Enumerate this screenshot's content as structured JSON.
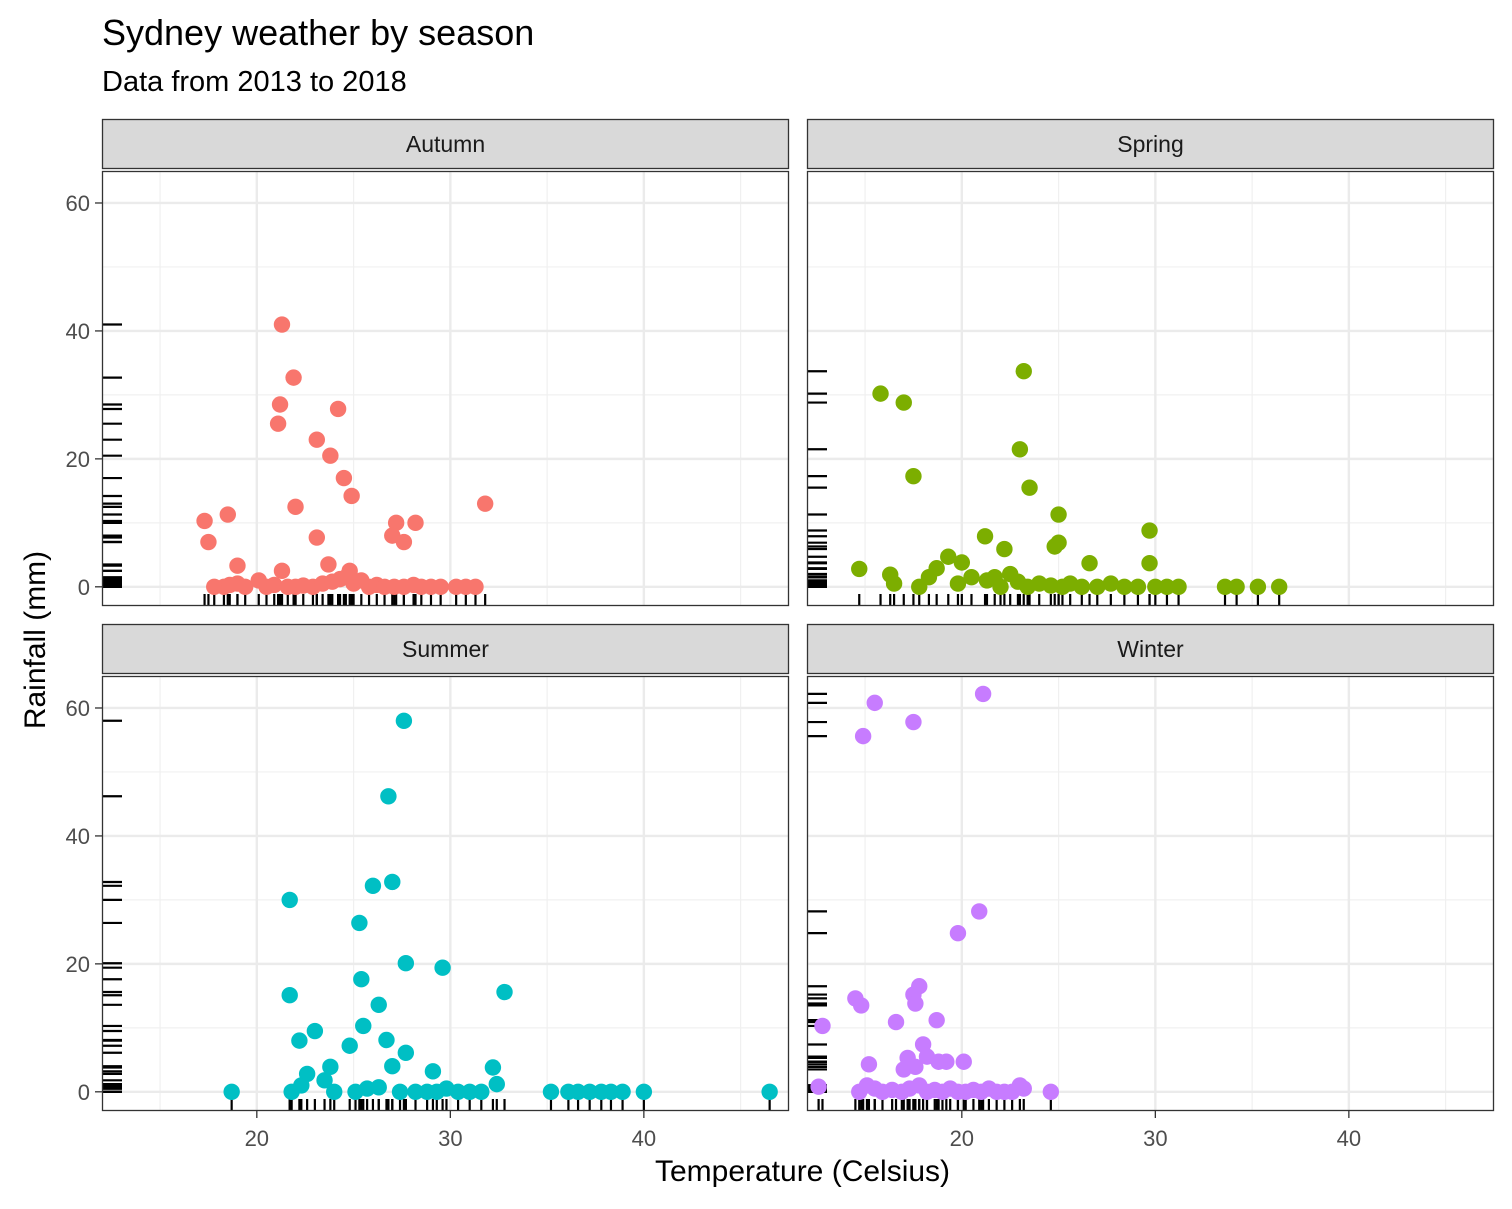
{
  "chart_data": {
    "type": "scatter",
    "title": "Sydney weather by season",
    "subtitle": "Data from 2013 to 2018",
    "xlabel": "Temperature (Celsius)",
    "ylabel": "Rainfall (mm)",
    "xlim": [
      12,
      47.5
    ],
    "ylim": [
      -3,
      65
    ],
    "x_ticks": [
      20,
      30,
      40
    ],
    "y_ticks": [
      0,
      20,
      40,
      60
    ],
    "grid": true,
    "rug": true,
    "facets": [
      {
        "name": "Autumn",
        "color": "#F8766D",
        "points": [
          [
            17.3,
            10.3
          ],
          [
            17.5,
            7.0
          ],
          [
            18.5,
            11.3
          ],
          [
            19.0,
            3.3
          ],
          [
            21.3,
            41.0
          ],
          [
            21.2,
            28.5
          ],
          [
            21.1,
            25.5
          ],
          [
            21.9,
            32.7
          ],
          [
            22.0,
            12.5
          ],
          [
            21.3,
            2.5
          ],
          [
            23.1,
            23.0
          ],
          [
            23.1,
            7.7
          ],
          [
            24.2,
            27.8
          ],
          [
            23.8,
            20.5
          ],
          [
            23.7,
            3.5
          ],
          [
            24.5,
            17.0
          ],
          [
            24.9,
            14.2
          ],
          [
            24.8,
            2.5
          ],
          [
            27.2,
            10.0
          ],
          [
            28.2,
            10.0
          ],
          [
            27.0,
            8.0
          ],
          [
            27.6,
            7.0
          ],
          [
            31.8,
            13.0
          ],
          [
            17.8,
            0
          ],
          [
            18.3,
            0
          ],
          [
            18.6,
            0.3
          ],
          [
            19.0,
            0.5
          ],
          [
            19.4,
            0
          ],
          [
            20.1,
            1.0
          ],
          [
            20.5,
            0
          ],
          [
            20.9,
            0.3
          ],
          [
            21.6,
            0
          ],
          [
            22.0,
            0
          ],
          [
            22.4,
            0.2
          ],
          [
            22.9,
            0
          ],
          [
            23.4,
            0.5
          ],
          [
            23.9,
            0.8
          ],
          [
            24.3,
            1.2
          ],
          [
            24.6,
            1.5
          ],
          [
            25.0,
            0.5
          ],
          [
            25.4,
            1.0
          ],
          [
            25.8,
            0
          ],
          [
            26.2,
            0.3
          ],
          [
            26.6,
            0
          ],
          [
            27.1,
            0
          ],
          [
            27.6,
            0
          ],
          [
            28.1,
            0.3
          ],
          [
            28.5,
            0
          ],
          [
            29.0,
            0
          ],
          [
            29.5,
            0
          ],
          [
            30.3,
            0
          ],
          [
            30.8,
            0
          ],
          [
            31.3,
            0
          ]
        ]
      },
      {
        "name": "Spring",
        "color": "#7CAE00",
        "points": [
          [
            15.8,
            30.2
          ],
          [
            17.0,
            28.8
          ],
          [
            17.5,
            17.3
          ],
          [
            23.2,
            33.7
          ],
          [
            23.0,
            21.5
          ],
          [
            23.5,
            15.5
          ],
          [
            25.0,
            11.3
          ],
          [
            29.7,
            8.8
          ],
          [
            29.7,
            3.7
          ],
          [
            21.2,
            7.9
          ],
          [
            22.2,
            5.9
          ],
          [
            24.8,
            6.3
          ],
          [
            25.0,
            6.9
          ],
          [
            26.6,
            3.7
          ],
          [
            14.7,
            2.8
          ],
          [
            16.3,
            1.9
          ],
          [
            18.7,
            2.9
          ],
          [
            19.3,
            4.7
          ],
          [
            20.0,
            3.8
          ],
          [
            16.5,
            0.5
          ],
          [
            17.8,
            0
          ],
          [
            18.3,
            1.5
          ],
          [
            19.8,
            0.5
          ],
          [
            20.5,
            1.5
          ],
          [
            21.3,
            1.0
          ],
          [
            21.7,
            1.5
          ],
          [
            22.0,
            0
          ],
          [
            22.5,
            2.0
          ],
          [
            22.9,
            0.8
          ],
          [
            23.4,
            0
          ],
          [
            24.0,
            0.5
          ],
          [
            24.6,
            0.2
          ],
          [
            25.2,
            0
          ],
          [
            25.6,
            0.5
          ],
          [
            26.2,
            0
          ],
          [
            27.0,
            0
          ],
          [
            27.7,
            0.5
          ],
          [
            28.4,
            0
          ],
          [
            29.1,
            0
          ],
          [
            30.0,
            0
          ],
          [
            30.6,
            0
          ],
          [
            31.2,
            0
          ],
          [
            33.6,
            0
          ],
          [
            34.2,
            0
          ],
          [
            35.3,
            0
          ],
          [
            36.4,
            0
          ]
        ]
      },
      {
        "name": "Summer",
        "color": "#00BFC4",
        "points": [
          [
            27.6,
            58.0
          ],
          [
            26.8,
            46.2
          ],
          [
            27.0,
            32.8
          ],
          [
            26.0,
            32.2
          ],
          [
            21.7,
            30.0
          ],
          [
            25.3,
            26.4
          ],
          [
            27.7,
            20.1
          ],
          [
            29.6,
            19.4
          ],
          [
            25.4,
            17.6
          ],
          [
            21.7,
            15.1
          ],
          [
            32.8,
            15.6
          ],
          [
            26.3,
            13.6
          ],
          [
            25.5,
            10.3
          ],
          [
            23.0,
            9.5
          ],
          [
            22.2,
            8.0
          ],
          [
            26.7,
            8.1
          ],
          [
            24.8,
            7.2
          ],
          [
            27.7,
            6.1
          ],
          [
            23.8,
            3.9
          ],
          [
            22.6,
            2.8
          ],
          [
            29.1,
            3.2
          ],
          [
            32.2,
            3.8
          ],
          [
            18.7,
            0
          ],
          [
            21.8,
            0
          ],
          [
            22.3,
            1.0
          ],
          [
            23.5,
            1.8
          ],
          [
            24.0,
            0
          ],
          [
            25.1,
            0
          ],
          [
            25.7,
            0.5
          ],
          [
            26.3,
            0.7
          ],
          [
            27.0,
            4.0
          ],
          [
            27.4,
            0
          ],
          [
            28.2,
            0
          ],
          [
            28.8,
            0
          ],
          [
            29.3,
            0
          ],
          [
            29.8,
            0.5
          ],
          [
            30.4,
            0
          ],
          [
            31.0,
            0
          ],
          [
            31.6,
            0
          ],
          [
            32.4,
            1.2
          ],
          [
            35.2,
            0
          ],
          [
            36.1,
            0
          ],
          [
            36.6,
            0
          ],
          [
            37.2,
            0
          ],
          [
            37.8,
            0
          ],
          [
            38.3,
            0
          ],
          [
            38.9,
            0
          ],
          [
            40.0,
            0
          ],
          [
            46.5,
            0
          ]
        ]
      },
      {
        "name": "Winter",
        "color": "#C77CFF",
        "points": [
          [
            21.1,
            62.2
          ],
          [
            15.5,
            60.8
          ],
          [
            17.5,
            57.8
          ],
          [
            14.9,
            55.6
          ],
          [
            20.9,
            28.2
          ],
          [
            19.8,
            24.8
          ],
          [
            17.8,
            16.5
          ],
          [
            17.5,
            15.2
          ],
          [
            14.5,
            14.6
          ],
          [
            14.8,
            13.5
          ],
          [
            17.6,
            13.8
          ],
          [
            16.6,
            10.9
          ],
          [
            18.7,
            11.2
          ],
          [
            12.8,
            10.3
          ],
          [
            18.0,
            7.4
          ],
          [
            17.2,
            5.3
          ],
          [
            18.2,
            5.5
          ],
          [
            18.8,
            4.7
          ],
          [
            19.2,
            4.7
          ],
          [
            20.1,
            4.7
          ],
          [
            15.2,
            4.3
          ],
          [
            17.0,
            3.5
          ],
          [
            17.6,
            3.9
          ],
          [
            12.6,
            0.8
          ],
          [
            14.7,
            0
          ],
          [
            15.1,
            1.0
          ],
          [
            15.5,
            0.5
          ],
          [
            15.9,
            0
          ],
          [
            16.4,
            0.3
          ],
          [
            16.9,
            0
          ],
          [
            17.3,
            0.5
          ],
          [
            17.8,
            1.0
          ],
          [
            18.2,
            0
          ],
          [
            18.6,
            0.3
          ],
          [
            19.0,
            0
          ],
          [
            19.4,
            0.5
          ],
          [
            19.8,
            0
          ],
          [
            20.2,
            0
          ],
          [
            20.6,
            0.3
          ],
          [
            21.0,
            0
          ],
          [
            21.4,
            0.5
          ],
          [
            21.8,
            0
          ],
          [
            22.2,
            0
          ],
          [
            22.6,
            0
          ],
          [
            23.0,
            1.0
          ],
          [
            23.2,
            0.5
          ],
          [
            24.6,
            0
          ]
        ]
      }
    ]
  }
}
